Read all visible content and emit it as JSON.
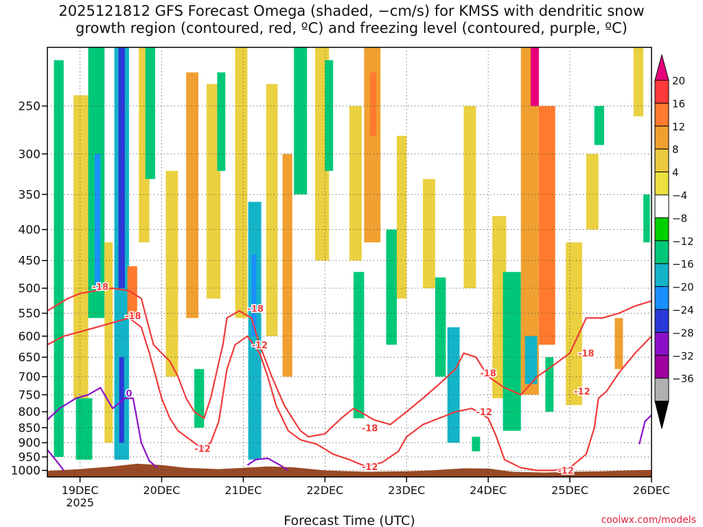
{
  "chart_data": {
    "type": "heatmap",
    "title": "2025121812 GFS Forecast Omega (shaded, −cm/s) for KMSS with dendritic snow\ngrowth region (contoured, red, ºC) and freezing level (contoured, purple, ºC)",
    "xlabel": "Forecast Time (UTC)",
    "ylabel": "",
    "x_ticks": [
      "19DEC",
      "20DEC",
      "21DEC",
      "22DEC",
      "23DEC",
      "24DEC",
      "25DEC",
      "26DEC"
    ],
    "x_year": "2025",
    "y_ticks": [
      250,
      300,
      350,
      400,
      450,
      500,
      550,
      600,
      650,
      700,
      750,
      800,
      850,
      900,
      950,
      1000
    ],
    "xlim_days": [
      18.6,
      26.0
    ],
    "ylim_hpa": [
      200,
      1025
    ],
    "colorbar": {
      "labels": [
        "20",
        "16",
        "12",
        "8",
        "4",
        "−4",
        "−8",
        "−12",
        "−16",
        "−20",
        "−24",
        "−28",
        "−32",
        "−36"
      ],
      "colors": [
        "#e8007a",
        "#ff3a3a",
        "#ff7a2e",
        "#f0a030",
        "#ebc940",
        "#ebe040",
        "#ffffff",
        "#00d000",
        "#00c878",
        "#14b4c8",
        "#1a90ff",
        "#2a3ad8",
        "#8a10c8",
        "#a000a0",
        "#b0b0b0",
        "#000000"
      ]
    },
    "shading": [
      {
        "t0": 18.68,
        "t1": 18.8,
        "p0": 210,
        "p1": 950,
        "value": -8
      },
      {
        "t0": 18.92,
        "t1": 19.1,
        "p0": 240,
        "p1": 760,
        "value": 6
      },
      {
        "t0": 18.95,
        "t1": 19.15,
        "p0": 760,
        "p1": 960,
        "value": -8
      },
      {
        "t0": 19.1,
        "t1": 19.3,
        "p0": 200,
        "p1": 560,
        "value": -10
      },
      {
        "t0": 19.18,
        "t1": 19.25,
        "p0": 300,
        "p1": 500,
        "value": -16
      },
      {
        "t0": 19.3,
        "t1": 19.4,
        "p0": 420,
        "p1": 900,
        "value": 6
      },
      {
        "t0": 19.42,
        "t1": 19.6,
        "p0": 200,
        "p1": 960,
        "value": -12
      },
      {
        "t0": 19.47,
        "t1": 19.55,
        "p0": 200,
        "p1": 500,
        "value": -22
      },
      {
        "t0": 19.48,
        "t1": 19.54,
        "p0": 650,
        "p1": 900,
        "value": -20
      },
      {
        "t0": 19.58,
        "t1": 19.7,
        "p0": 460,
        "p1": 560,
        "value": 14
      },
      {
        "t0": 19.72,
        "t1": 19.85,
        "p0": 200,
        "p1": 420,
        "value": 6
      },
      {
        "t0": 19.8,
        "t1": 19.92,
        "p0": 200,
        "p1": 330,
        "value": -8
      },
      {
        "t0": 20.05,
        "t1": 20.2,
        "p0": 320,
        "p1": 700,
        "value": 6
      },
      {
        "t0": 20.3,
        "t1": 20.45,
        "p0": 220,
        "p1": 560,
        "value": 8
      },
      {
        "t0": 20.4,
        "t1": 20.52,
        "p0": 680,
        "p1": 850,
        "value": -8
      },
      {
        "t0": 20.55,
        "t1": 20.72,
        "p0": 230,
        "p1": 520,
        "value": 6
      },
      {
        "t0": 20.68,
        "t1": 20.78,
        "p0": 220,
        "p1": 320,
        "value": -8
      },
      {
        "t0": 20.9,
        "t1": 21.05,
        "p0": 200,
        "p1": 560,
        "value": 6
      },
      {
        "t0": 21.06,
        "t1": 21.22,
        "p0": 360,
        "p1": 960,
        "value": -12
      },
      {
        "t0": 21.1,
        "t1": 21.16,
        "p0": 440,
        "p1": 600,
        "value": -18
      },
      {
        "t0": 21.28,
        "t1": 21.42,
        "p0": 230,
        "p1": 600,
        "value": 6
      },
      {
        "t0": 21.48,
        "t1": 21.6,
        "p0": 300,
        "p1": 700,
        "value": 8
      },
      {
        "t0": 21.62,
        "t1": 21.78,
        "p0": 200,
        "p1": 350,
        "value": -8
      },
      {
        "t0": 21.88,
        "t1": 22.05,
        "p0": 200,
        "p1": 450,
        "value": 6
      },
      {
        "t0": 22.0,
        "t1": 22.1,
        "p0": 210,
        "p1": 320,
        "value": -10
      },
      {
        "t0": 22.3,
        "t1": 22.45,
        "p0": 250,
        "p1": 450,
        "value": 6
      },
      {
        "t0": 22.35,
        "t1": 22.48,
        "p0": 470,
        "p1": 820,
        "value": -8
      },
      {
        "t0": 22.48,
        "t1": 22.68,
        "p0": 200,
        "p1": 420,
        "value": 10
      },
      {
        "t0": 22.55,
        "t1": 22.63,
        "p0": 220,
        "p1": 280,
        "value": 14
      },
      {
        "t0": 22.75,
        "t1": 22.88,
        "p0": 400,
        "p1": 620,
        "value": -8
      },
      {
        "t0": 22.88,
        "t1": 23.0,
        "p0": 280,
        "p1": 520,
        "value": 6
      },
      {
        "t0": 23.2,
        "t1": 23.35,
        "p0": 330,
        "p1": 500,
        "value": 6
      },
      {
        "t0": 23.35,
        "t1": 23.48,
        "p0": 480,
        "p1": 700,
        "value": -8
      },
      {
        "t0": 23.5,
        "t1": 23.65,
        "p0": 580,
        "p1": 900,
        "value": -12
      },
      {
        "t0": 23.7,
        "t1": 23.85,
        "p0": 250,
        "p1": 500,
        "value": 6
      },
      {
        "t0": 23.8,
        "t1": 23.9,
        "p0": 880,
        "p1": 930,
        "value": -8
      },
      {
        "t0": 24.05,
        "t1": 24.22,
        "p0": 380,
        "p1": 760,
        "value": 6
      },
      {
        "t0": 24.18,
        "t1": 24.4,
        "p0": 470,
        "p1": 860,
        "value": -10
      },
      {
        "t0": 24.4,
        "t1": 24.62,
        "p0": 200,
        "p1": 750,
        "value": 10
      },
      {
        "t0": 24.52,
        "t1": 24.62,
        "p0": 200,
        "p1": 250,
        "value": 22
      },
      {
        "t0": 24.45,
        "t1": 24.6,
        "p0": 600,
        "p1": 720,
        "value": -12
      },
      {
        "t0": 24.62,
        "t1": 24.82,
        "p0": 250,
        "p1": 620,
        "value": 12
      },
      {
        "t0": 24.7,
        "t1": 24.8,
        "p0": 650,
        "p1": 800,
        "value": -8
      },
      {
        "t0": 24.95,
        "t1": 25.15,
        "p0": 420,
        "p1": 780,
        "value": 6
      },
      {
        "t0": 25.2,
        "t1": 25.35,
        "p0": 300,
        "p1": 400,
        "value": 6
      },
      {
        "t0": 25.3,
        "t1": 25.42,
        "p0": 250,
        "p1": 290,
        "value": -8
      },
      {
        "t0": 25.55,
        "t1": 25.65,
        "p0": 560,
        "p1": 680,
        "value": 10
      },
      {
        "t0": 25.78,
        "t1": 25.9,
        "p0": 200,
        "p1": 260,
        "value": 6
      },
      {
        "t0": 25.9,
        "t1": 25.98,
        "p0": 350,
        "p1": 420,
        "value": -8
      }
    ],
    "contours": [
      {
        "label": "-18",
        "color": "#f03a3a",
        "points": [
          [
            18.6,
            545
          ],
          [
            18.85,
            520
          ],
          [
            19.0,
            510
          ],
          [
            19.2,
            505
          ],
          [
            19.4,
            500
          ],
          [
            19.6,
            505
          ],
          [
            19.75,
            520
          ],
          [
            19.9,
            620
          ],
          [
            20.0,
            640
          ],
          [
            20.1,
            660
          ],
          [
            20.2,
            700
          ],
          [
            20.3,
            760
          ],
          [
            20.4,
            800
          ],
          [
            20.52,
            820
          ],
          [
            20.6,
            760
          ],
          [
            20.75,
            620
          ],
          [
            20.8,
            560
          ],
          [
            20.95,
            545
          ],
          [
            21.1,
            560
          ],
          [
            21.2,
            620
          ],
          [
            21.35,
            700
          ],
          [
            21.5,
            780
          ],
          [
            21.6,
            820
          ],
          [
            21.7,
            860
          ],
          [
            21.8,
            880
          ],
          [
            22.0,
            870
          ],
          [
            22.2,
            820
          ],
          [
            22.35,
            790
          ],
          [
            22.5,
            810
          ],
          [
            22.6,
            825
          ],
          [
            22.8,
            840
          ],
          [
            23.0,
            800
          ],
          [
            23.2,
            760
          ],
          [
            23.4,
            720
          ],
          [
            23.6,
            680
          ],
          [
            23.7,
            640
          ],
          [
            23.85,
            650
          ],
          [
            24.0,
            700
          ],
          [
            24.2,
            730
          ],
          [
            24.4,
            750
          ],
          [
            24.6,
            700
          ],
          [
            24.8,
            670
          ],
          [
            25.0,
            640
          ],
          [
            25.2,
            560
          ],
          [
            25.4,
            560
          ],
          [
            25.6,
            550
          ],
          [
            25.8,
            535
          ],
          [
            26.0,
            525
          ]
        ]
      },
      {
        "label": "-12",
        "color": "#f03a3a",
        "points": [
          [
            18.6,
            620
          ],
          [
            18.8,
            600
          ],
          [
            19.0,
            590
          ],
          [
            19.2,
            580
          ],
          [
            19.4,
            570
          ],
          [
            19.6,
            560
          ],
          [
            19.75,
            580
          ],
          [
            19.85,
            640
          ],
          [
            20.0,
            760
          ],
          [
            20.1,
            820
          ],
          [
            20.2,
            860
          ],
          [
            20.35,
            890
          ],
          [
            20.5,
            920
          ],
          [
            20.6,
            900
          ],
          [
            20.7,
            830
          ],
          [
            20.8,
            680
          ],
          [
            20.9,
            620
          ],
          [
            21.05,
            600
          ],
          [
            21.2,
            640
          ],
          [
            21.3,
            700
          ],
          [
            21.4,
            780
          ],
          [
            21.55,
            860
          ],
          [
            21.7,
            890
          ],
          [
            21.9,
            905
          ],
          [
            22.1,
            940
          ],
          [
            22.3,
            960
          ],
          [
            22.5,
            985
          ],
          [
            22.7,
            970
          ],
          [
            22.9,
            930
          ],
          [
            23.0,
            880
          ],
          [
            23.2,
            840
          ],
          [
            23.4,
            820
          ],
          [
            23.6,
            800
          ],
          [
            23.8,
            790
          ],
          [
            24.0,
            820
          ],
          [
            24.1,
            880
          ],
          [
            24.2,
            960
          ],
          [
            24.4,
            990
          ],
          [
            24.6,
            1000
          ],
          [
            24.8,
            1000
          ],
          [
            25.0,
            990
          ],
          [
            25.2,
            940
          ],
          [
            25.3,
            850
          ],
          [
            25.35,
            760
          ],
          [
            25.45,
            740
          ],
          [
            25.6,
            690
          ],
          [
            25.8,
            640
          ],
          [
            26.0,
            600
          ]
        ]
      },
      {
        "label": "0",
        "color": "#8a10c8",
        "points": [
          [
            18.6,
            825
          ],
          [
            18.75,
            790
          ],
          [
            18.95,
            760
          ],
          [
            19.1,
            750
          ],
          [
            19.25,
            730
          ],
          [
            19.4,
            790
          ],
          [
            19.55,
            760
          ],
          [
            19.65,
            760
          ],
          [
            19.75,
            900
          ],
          [
            19.85,
            965
          ],
          [
            19.95,
            990
          ]
        ]
      },
      {
        "label": "0",
        "color": "#8a10c8",
        "points": [
          [
            21.05,
            980
          ],
          [
            21.15,
            960
          ],
          [
            21.3,
            955
          ],
          [
            21.45,
            980
          ],
          [
            21.55,
            1000
          ]
        ]
      },
      {
        "label": "0",
        "color": "#8a10c8",
        "points": [
          [
            18.6,
            925
          ],
          [
            18.7,
            960
          ],
          [
            18.8,
            1000
          ]
        ]
      },
      {
        "label": "0",
        "color": "#8a10c8",
        "points": [
          [
            25.85,
            905
          ],
          [
            25.92,
            830
          ],
          [
            26.0,
            810
          ]
        ]
      }
    ],
    "contour_labels": [
      {
        "text": "-18",
        "t": 19.25,
        "p": 497
      },
      {
        "text": "-18",
        "t": 19.65,
        "p": 555
      },
      {
        "text": "-18",
        "t": 21.15,
        "p": 540
      },
      {
        "text": "-18",
        "t": 22.55,
        "p": 850
      },
      {
        "text": "-18",
        "t": 24.0,
        "p": 690
      },
      {
        "text": "-18",
        "t": 25.2,
        "p": 640
      },
      {
        "text": "-12",
        "t": 21.2,
        "p": 620
      },
      {
        "text": "-12",
        "t": 20.5,
        "p": 920
      },
      {
        "text": "-12",
        "t": 22.55,
        "p": 985
      },
      {
        "text": "-12",
        "t": 23.95,
        "p": 800
      },
      {
        "text": "-12",
        "t": 25.15,
        "p": 740
      },
      {
        "text": "-12",
        "t": 24.95,
        "p": 1000
      },
      {
        "text": "0",
        "t": 19.6,
        "p": 745
      }
    ]
  },
  "xaxis_label": "Forecast Time (UTC)",
  "watermark": "coolwx.com/models"
}
